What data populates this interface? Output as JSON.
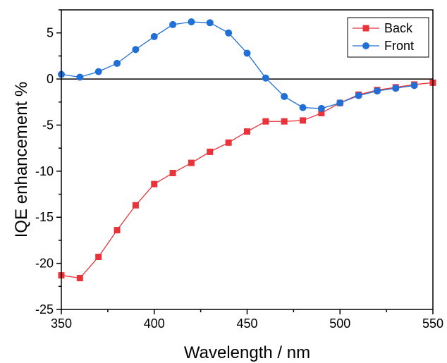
{
  "chart_data": {
    "type": "line",
    "title": "",
    "xlabel": "Wavelength / nm",
    "ylabel": "IQE enhancement %",
    "xlim": [
      350,
      550
    ],
    "ylim": [
      -25,
      7.5
    ],
    "xticks": [
      350,
      400,
      450,
      500,
      550
    ],
    "yticks": [
      5,
      0,
      -5,
      -10,
      -15,
      -20,
      -25
    ],
    "grid": false,
    "legend_position": "top-right",
    "zero_line": true,
    "series": [
      {
        "name": "Back",
        "color": "#e8333a",
        "marker": "square",
        "x": [
          350,
          360,
          370,
          380,
          390,
          400,
          410,
          420,
          430,
          440,
          450,
          460,
          470,
          480,
          490,
          500,
          510,
          520,
          530,
          540,
          550
        ],
        "values": [
          -21.3,
          -21.6,
          -19.3,
          -16.4,
          -13.7,
          -11.4,
          -10.2,
          -9.1,
          -7.9,
          -6.9,
          -5.7,
          -4.6,
          -4.6,
          -4.5,
          -3.7,
          -2.6,
          -1.7,
          -1.2,
          -0.9,
          -0.6,
          -0.4
        ]
      },
      {
        "name": "Front",
        "color": "#1f6fd6",
        "marker": "circle",
        "x": [
          350,
          360,
          370,
          380,
          390,
          400,
          410,
          420,
          430,
          440,
          450,
          460,
          470,
          480,
          490,
          500,
          510,
          520,
          530,
          540
        ],
        "values": [
          0.5,
          0.2,
          0.8,
          1.7,
          3.2,
          4.6,
          5.9,
          6.2,
          6.1,
          5.0,
          2.8,
          0.1,
          -1.9,
          -3.1,
          -3.2,
          -2.6,
          -1.8,
          -1.3,
          -1.0,
          -0.7
        ]
      }
    ]
  }
}
